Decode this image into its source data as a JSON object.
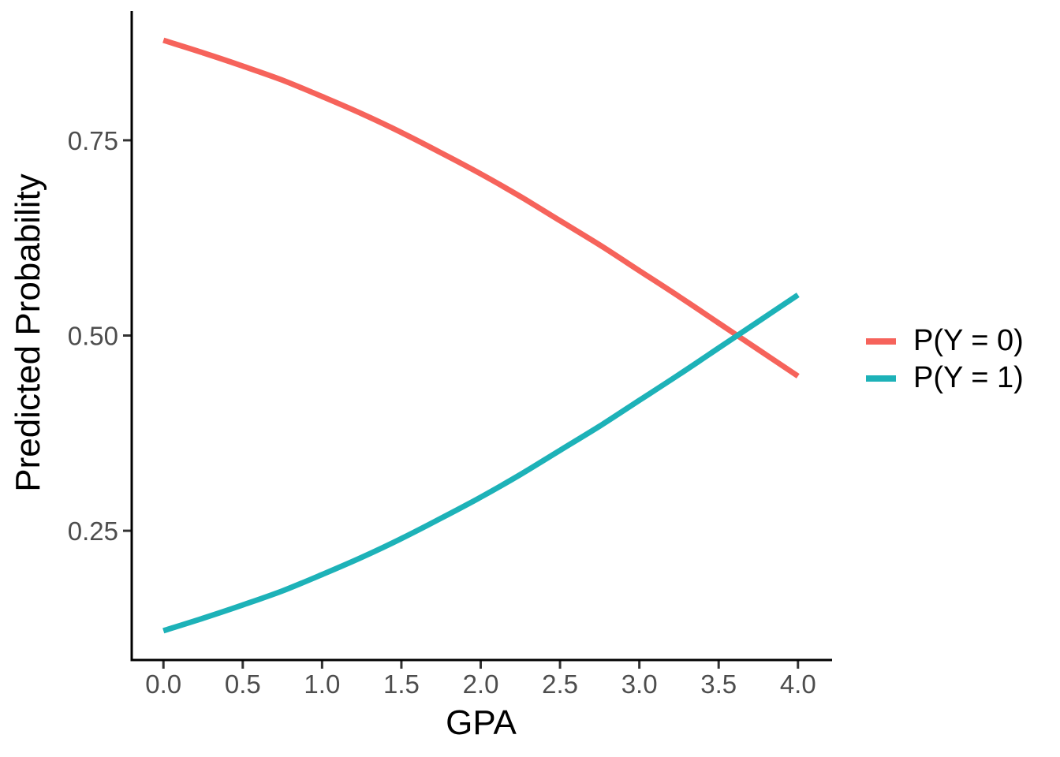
{
  "chart_data": {
    "type": "line",
    "title": "",
    "xlabel": "GPA",
    "ylabel": "Predicted Probability",
    "x": [
      0,
      0.25,
      0.5,
      0.75,
      1,
      1.25,
      1.5,
      1.75,
      2,
      2.25,
      2.5,
      2.75,
      3,
      3.25,
      3.5,
      3.75,
      4
    ],
    "series": [
      {
        "name": "P(Y = 0)",
        "color": "#F6635B",
        "values": [
          0.878,
          0.862,
          0.845,
          0.827,
          0.806,
          0.784,
          0.76,
          0.734,
          0.707,
          0.678,
          0.647,
          0.616,
          0.583,
          0.55,
          0.516,
          0.482,
          0.448
        ]
      },
      {
        "name": "P(Y = 1)",
        "color": "#1DB2B8",
        "values": [
          0.122,
          0.138,
          0.155,
          0.173,
          0.194,
          0.216,
          0.24,
          0.266,
          0.293,
          0.322,
          0.353,
          0.384,
          0.417,
          0.45,
          0.484,
          0.518,
          0.552
        ]
      }
    ],
    "x_ticks": {
      "values": [
        0,
        0.5,
        1,
        1.5,
        2,
        2.5,
        3,
        3.5,
        4
      ],
      "labels": [
        "0.0",
        "0.5",
        "1.0",
        "1.5",
        "2.0",
        "2.5",
        "3.0",
        "3.5",
        "4.0"
      ]
    },
    "y_ticks": {
      "values": [
        0.25,
        0.5,
        0.75
      ],
      "labels": [
        "0.25",
        "0.50",
        "0.75"
      ]
    },
    "xlim": [
      -0.2,
      4.2
    ],
    "ylim": [
      0.0845,
      0.9155
    ],
    "grid": false,
    "legend_position": "right",
    "colors": {
      "axis": "#000000",
      "tick_mark": "#333333",
      "tick_label": "#4D4D4D"
    },
    "crossing_point": {
      "gpa": 3.6,
      "probability": 0.5
    }
  }
}
